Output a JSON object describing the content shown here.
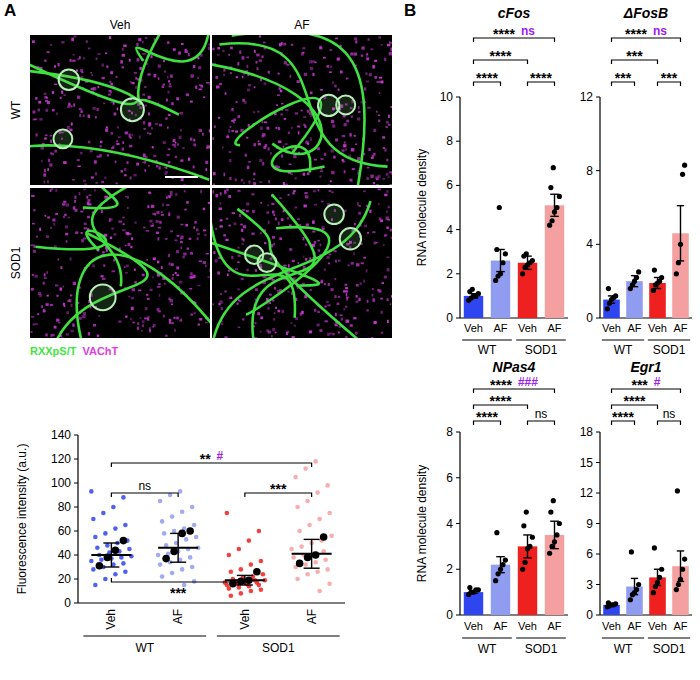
{
  "figure": {
    "panel_labels": [
      "A",
      "B"
    ],
    "image_panel": {
      "col_labels": [
        "Veh",
        "AF"
      ],
      "row_labels": [
        "WT",
        "SOD1"
      ],
      "legend": [
        {
          "text": "RXXpS/T",
          "color": "#3ee63e"
        },
        {
          "text": "VAChT",
          "color": "#e040e0"
        }
      ]
    }
  },
  "chart_data": [
    {
      "type": "dot",
      "y_label": "Fluorescence intensity (a.u.)",
      "categories": [
        "Veh",
        "AF",
        "Veh",
        "AF"
      ],
      "groups": [
        {
          "label": "WT",
          "count": 2
        },
        {
          "label": "SOD1",
          "count": 2
        }
      ],
      "colors": [
        "#2f45f0",
        "#8f9cf0",
        "#ee2020",
        "#f5a0a0"
      ],
      "values": [
        40,
        46,
        19,
        41
      ],
      "errors": [
        10,
        12,
        4,
        12
      ],
      "cell_values": [
        [
          93,
          88,
          80,
          75,
          70,
          65,
          62,
          58,
          55,
          52,
          50,
          48,
          46,
          45,
          43,
          42,
          40,
          39,
          38,
          37,
          36,
          35,
          33,
          32,
          30,
          28,
          26,
          24,
          20,
          15
        ],
        [
          93,
          90,
          85,
          80,
          76,
          72,
          68,
          65,
          62,
          60,
          58,
          55,
          53,
          50,
          48,
          46,
          45,
          43,
          41,
          40,
          38,
          36,
          34,
          32,
          30,
          28,
          25,
          22,
          18,
          15
        ],
        [
          75,
          60,
          52,
          45,
          40,
          35,
          32,
          28,
          26,
          24,
          22,
          21,
          20,
          19,
          19,
          18,
          18,
          17,
          17,
          16,
          16,
          15,
          15,
          14,
          13,
          12,
          11,
          10,
          8,
          6
        ],
        [
          118,
          112,
          105,
          98,
          92,
          85,
          80,
          75,
          70,
          65,
          60,
          56,
          52,
          50,
          47,
          45,
          43,
          41,
          40,
          38,
          36,
          34,
          32,
          30,
          28,
          26,
          24,
          20,
          16,
          10
        ]
      ],
      "animal_values": [
        [
          31,
          38,
          44,
          52
        ],
        [
          37,
          43,
          58,
          60
        ],
        [
          16,
          18,
          19,
          26
        ],
        [
          33,
          38,
          40,
          55
        ]
      ],
      "ylim": [
        0,
        140
      ],
      "yticks": [
        0,
        20,
        40,
        60,
        80,
        100,
        120,
        140
      ],
      "annotations": [
        {
          "between": [
            0,
            1
          ],
          "text": "ns"
        },
        {
          "between": [
            2,
            3
          ],
          "text": "***"
        },
        {
          "between": [
            0,
            3
          ],
          "text": "**",
          "text2": "#"
        },
        {
          "between": [
            0,
            2
          ],
          "text": "***",
          "side": "below"
        }
      ]
    },
    {
      "type": "bar",
      "title": "cFos",
      "y_label": "RNA molecule density",
      "categories": [
        "Veh",
        "AF",
        "Veh",
        "AF"
      ],
      "groups": [
        {
          "label": "WT",
          "count": 2
        },
        {
          "label": "SOD1",
          "count": 2
        }
      ],
      "colors": [
        "#2f45f0",
        "#8f9cf0",
        "#ee2020",
        "#f5a0a0"
      ],
      "values": [
        1.0,
        2.6,
        2.5,
        5.1
      ],
      "errors": [
        0.1,
        0.5,
        0.3,
        0.5
      ],
      "points": [
        [
          0.8,
          0.9,
          1.0,
          1.0,
          1.1,
          1.2,
          1.3
        ],
        [
          1.7,
          1.9,
          2.0,
          2.5,
          2.9,
          3.1,
          5.0
        ],
        [
          2.0,
          2.3,
          2.4,
          2.5,
          2.6,
          2.8,
          2.9
        ],
        [
          4.2,
          4.4,
          4.8,
          5.0,
          5.5,
          5.9,
          6.8
        ]
      ],
      "ylim": [
        0,
        10
      ],
      "yticks": [
        0,
        2,
        4,
        6,
        8,
        10
      ],
      "annotations": [
        {
          "between": [
            0,
            1
          ],
          "text": "****"
        },
        {
          "between": [
            2,
            3
          ],
          "text": "****"
        },
        {
          "between": [
            0,
            2
          ],
          "text": "****"
        },
        {
          "between": [
            0,
            3
          ],
          "text": "****",
          "text2": "ns"
        }
      ]
    },
    {
      "type": "bar",
      "title": "ΔFosB",
      "categories": [
        "Veh",
        "AF",
        "Veh",
        "AF"
      ],
      "groups": [
        {
          "label": "WT",
          "count": 2
        },
        {
          "label": "SOD1",
          "count": 2
        }
      ],
      "colors": [
        "#2f45f0",
        "#8f9cf0",
        "#ee2020",
        "#f5a0a0"
      ],
      "values": [
        1.0,
        2.0,
        1.9,
        4.6
      ],
      "errors": [
        0.2,
        0.3,
        0.3,
        1.5
      ],
      "points": [
        [
          0.5,
          0.8,
          1.0,
          1.1,
          1.2,
          1.6
        ],
        [
          1.6,
          1.8,
          2.0,
          2.2,
          2.5
        ],
        [
          1.5,
          1.8,
          1.9,
          2.0,
          2.2,
          2.6
        ],
        [
          2.4,
          3.0,
          4.0,
          7.8,
          8.3
        ]
      ],
      "ylim": [
        0,
        12
      ],
      "yticks": [
        0,
        4,
        8,
        12
      ],
      "annotations": [
        {
          "between": [
            0,
            1
          ],
          "text": "***"
        },
        {
          "between": [
            2,
            3
          ],
          "text": "***"
        },
        {
          "between": [
            0,
            2
          ],
          "text": "***"
        },
        {
          "between": [
            0,
            3
          ],
          "text": "****",
          "text2": "ns"
        }
      ]
    },
    {
      "type": "bar",
      "title": "NPas4",
      "y_label": "RNA molecule density",
      "categories": [
        "Veh",
        "AF",
        "Veh",
        "AF"
      ],
      "groups": [
        {
          "label": "WT",
          "count": 2
        },
        {
          "label": "SOD1",
          "count": 2
        }
      ],
      "colors": [
        "#2f45f0",
        "#8f9cf0",
        "#ee2020",
        "#f5a0a0"
      ],
      "values": [
        1.0,
        2.2,
        3.0,
        3.5
      ],
      "errors": [
        0.05,
        0.35,
        0.5,
        0.6
      ],
      "points": [
        [
          0.9,
          1.0,
          1.0,
          1.1,
          1.1,
          1.2
        ],
        [
          1.5,
          1.8,
          2.0,
          2.2,
          2.4,
          3.6
        ],
        [
          2.0,
          2.3,
          2.9,
          3.0,
          3.4,
          3.9,
          4.5
        ],
        [
          2.7,
          3.0,
          3.2,
          3.5,
          4.0,
          4.5,
          5.0
        ]
      ],
      "ylim": [
        0,
        8
      ],
      "yticks": [
        0,
        2,
        4,
        6,
        8
      ],
      "annotations": [
        {
          "between": [
            0,
            1
          ],
          "text": "****"
        },
        {
          "between": [
            2,
            3
          ],
          "text": "ns"
        },
        {
          "between": [
            0,
            2
          ],
          "text": "****"
        },
        {
          "between": [
            0,
            3
          ],
          "text": "****",
          "text2": "###"
        }
      ]
    },
    {
      "type": "bar",
      "title": "Egr1",
      "categories": [
        "Veh",
        "AF",
        "Veh",
        "AF"
      ],
      "groups": [
        {
          "label": "WT",
          "count": 2
        },
        {
          "label": "SOD1",
          "count": 2
        }
      ],
      "colors": [
        "#2f45f0",
        "#8f9cf0",
        "#ee2020",
        "#f5a0a0"
      ],
      "values": [
        1.0,
        2.8,
        3.7,
        4.8
      ],
      "errors": [
        0.1,
        0.8,
        0.8,
        1.5
      ],
      "points": [
        [
          0.8,
          0.9,
          1.0,
          1.0,
          1.1,
          1.2
        ],
        [
          1.5,
          2.0,
          2.2,
          2.5,
          3.0,
          6.2
        ],
        [
          2.2,
          2.8,
          3.2,
          3.7,
          4.5,
          6.6
        ],
        [
          2.5,
          3.0,
          3.5,
          4.5,
          5.5,
          12.2
        ]
      ],
      "ylim": [
        0,
        18
      ],
      "yticks": [
        0,
        3,
        6,
        9,
        12,
        15,
        18
      ],
      "annotations": [
        {
          "between": [
            0,
            1
          ],
          "text": "****"
        },
        {
          "between": [
            2,
            3
          ],
          "text": "ns"
        },
        {
          "between": [
            0,
            2
          ],
          "text": "****"
        },
        {
          "between": [
            0,
            3
          ],
          "text": "***",
          "text2": "#"
        }
      ]
    }
  ]
}
